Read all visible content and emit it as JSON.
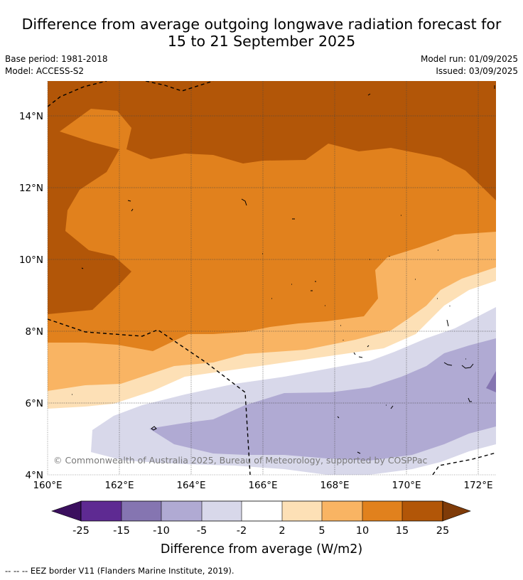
{
  "title": {
    "line1": "Difference from average outgoing longwave radiation forecast for",
    "line2": "15 to 21 September 2025"
  },
  "meta": {
    "base_period": "Base period: 1981-2018",
    "model": "Model: ACCESS-S2",
    "model_run": "Model run: 01/09/2025",
    "issued": "Issued: 03/09/2025"
  },
  "map": {
    "lon_labels": [
      "160°E",
      "162°E",
      "164°E",
      "166°E",
      "168°E",
      "170°E",
      "172°E"
    ],
    "lat_labels": [
      "14°N",
      "12°N",
      "10°N",
      "8°N",
      "6°N",
      "4°N"
    ],
    "copyright": "© Commonwealth of Australia 2025, Bureau of Meteorology, supported by COSPPac"
  },
  "colorbar": {
    "tick_labels": [
      "-25",
      "-15",
      "-10",
      "-5",
      "-2",
      "2",
      "5",
      "10",
      "15",
      "25"
    ],
    "colors": {
      "below_-25": "#3b0f5e",
      "-25_-15": "#5e2a92",
      "-15_-10": "#8575b1",
      "-10_-5": "#b0aad3",
      "-5_-2": "#d8d8ea",
      "-2_2": "#ffffff",
      "2_5": "#fde0b6",
      "5_10": "#f9b463",
      "10_15": "#e1811d",
      "15_25": "#b25608",
      "above_25": "#7f3b08"
    },
    "label": "Difference from average (W/m2)"
  },
  "footer": "--  --  -- EEZ border V11 (Flanders Marine Institute, 2019)."
}
